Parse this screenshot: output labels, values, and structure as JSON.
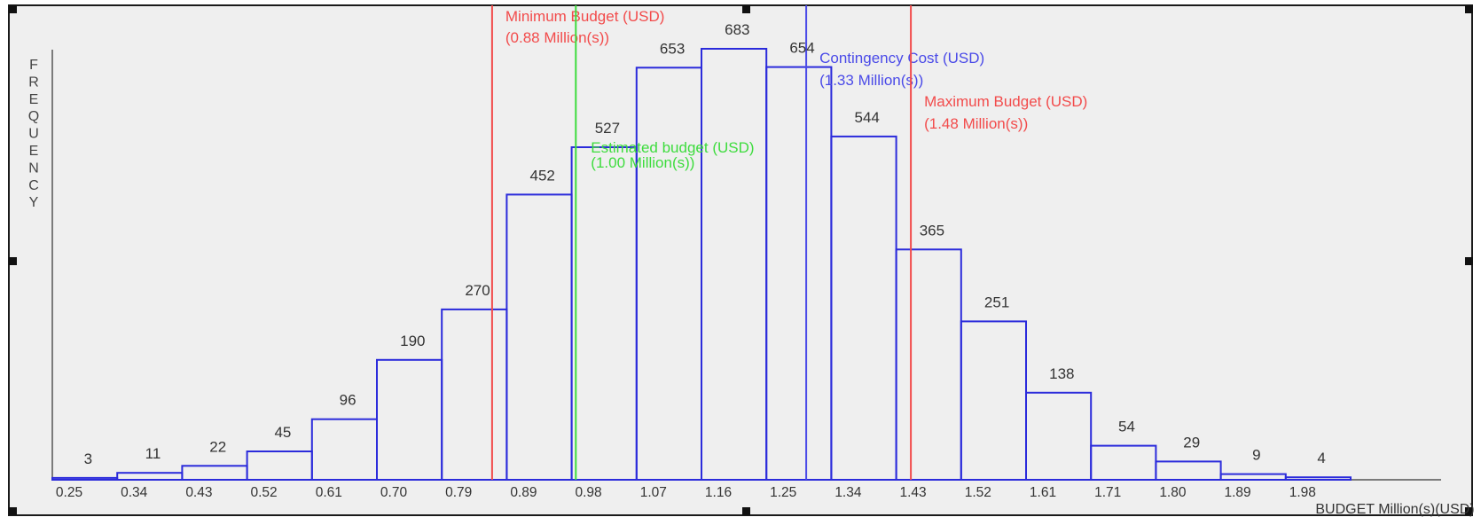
{
  "chart_data": {
    "type": "bar",
    "ylabel": "FREQUENCY",
    "xlabel": "BUDGET  Million(s)(USD)",
    "x_ticks": [
      "0.25",
      "0.34",
      "0.43",
      "0.52",
      "0.61",
      "0.70",
      "0.79",
      "0.89",
      "0.98",
      "1.07",
      "1.16",
      "1.25",
      "1.34",
      "1.43",
      "1.52",
      "1.61",
      "1.71",
      "1.80",
      "1.89",
      "1.98"
    ],
    "values": [
      3,
      11,
      22,
      45,
      96,
      190,
      270,
      452,
      527,
      653,
      683,
      654,
      544,
      365,
      251,
      138,
      54,
      29,
      9,
      4
    ],
    "x_range": [
      0.25,
      2.11
    ],
    "ylim": [
      0,
      683
    ],
    "grid": false,
    "bar_color": "#2b2bdb",
    "reference_lines": [
      {
        "label": "Minimum Budget (USD)",
        "value_text": "(0.88  Million(s))",
        "value": 0.88,
        "color": "#f24b4b"
      },
      {
        "label": "Estimated budget (USD)",
        "value_text": "(1.00  Million(s))",
        "value": 1.0,
        "color": "#3ddc3d"
      },
      {
        "label": "Contingency Cost (USD)",
        "value_text": "(1.33  Million(s))",
        "value": 1.33,
        "color": "#4a4ae8"
      },
      {
        "label": "Maximum Budget (USD)",
        "value_text": "(1.48  Million(s))",
        "value": 1.48,
        "color": "#f24b4b"
      }
    ]
  }
}
